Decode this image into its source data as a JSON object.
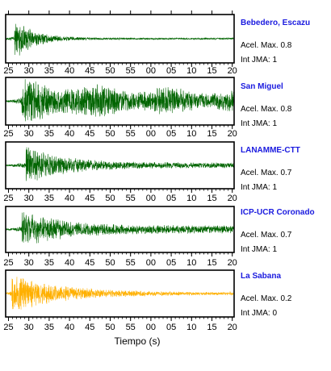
{
  "chart_data": {
    "type": "line",
    "xlabel": "Tiempo (s)",
    "tick_labels": [
      "25",
      "30",
      "35",
      "40",
      "45",
      "50",
      "55",
      "00",
      "05",
      "10",
      "15",
      "20"
    ],
    "minor_ticks_per_label": 5,
    "stations": [
      {
        "name": "Bebedero, Escazu",
        "acel_label": "Acel. Max. 0.8",
        "jma_label": "Int JMA: 1",
        "acel_max": 0.8,
        "jma": 1,
        "color": "#006400",
        "waveform": {
          "onset_s": 2.2,
          "peak_amp": 0.9,
          "decay_s": 5,
          "coda": 0.04
        }
      },
      {
        "name": "San Miguel",
        "acel_label": "Acel. Max. 0.8",
        "jma_label": "Int JMA: 1",
        "acel_max": 0.8,
        "jma": 1,
        "color": "#006400",
        "waveform": {
          "onset_s": 4,
          "peak_amp": 0.85,
          "decay_s": 30,
          "coda": 0.35
        }
      },
      {
        "name": "LANAMME-CTT",
        "acel_label": "Acel. Max. 0.7",
        "jma_label": "Int JMA: 1",
        "acel_max": 0.7,
        "jma": 1,
        "color": "#006400",
        "waveform": {
          "onset_s": 5,
          "peak_amp": 0.9,
          "decay_s": 9,
          "coda": 0.12
        }
      },
      {
        "name": "ICP-UCR Coronado",
        "acel_label": "Acel. Max. 0.7",
        "jma_label": "Int JMA: 1",
        "acel_max": 0.7,
        "jma": 1,
        "color": "#006400",
        "waveform": {
          "onset_s": 4,
          "peak_amp": 0.85,
          "decay_s": 10,
          "coda": 0.18
        }
      },
      {
        "name": "La Sabana",
        "acel_label": "Acel. Max. 0.2",
        "jma_label": "Int JMA: 0",
        "acel_max": 0.2,
        "jma": 0,
        "color": "#FFB000",
        "waveform": {
          "onset_s": 1.5,
          "peak_amp": 0.9,
          "decay_s": 12,
          "coda": 0.06
        }
      }
    ]
  }
}
